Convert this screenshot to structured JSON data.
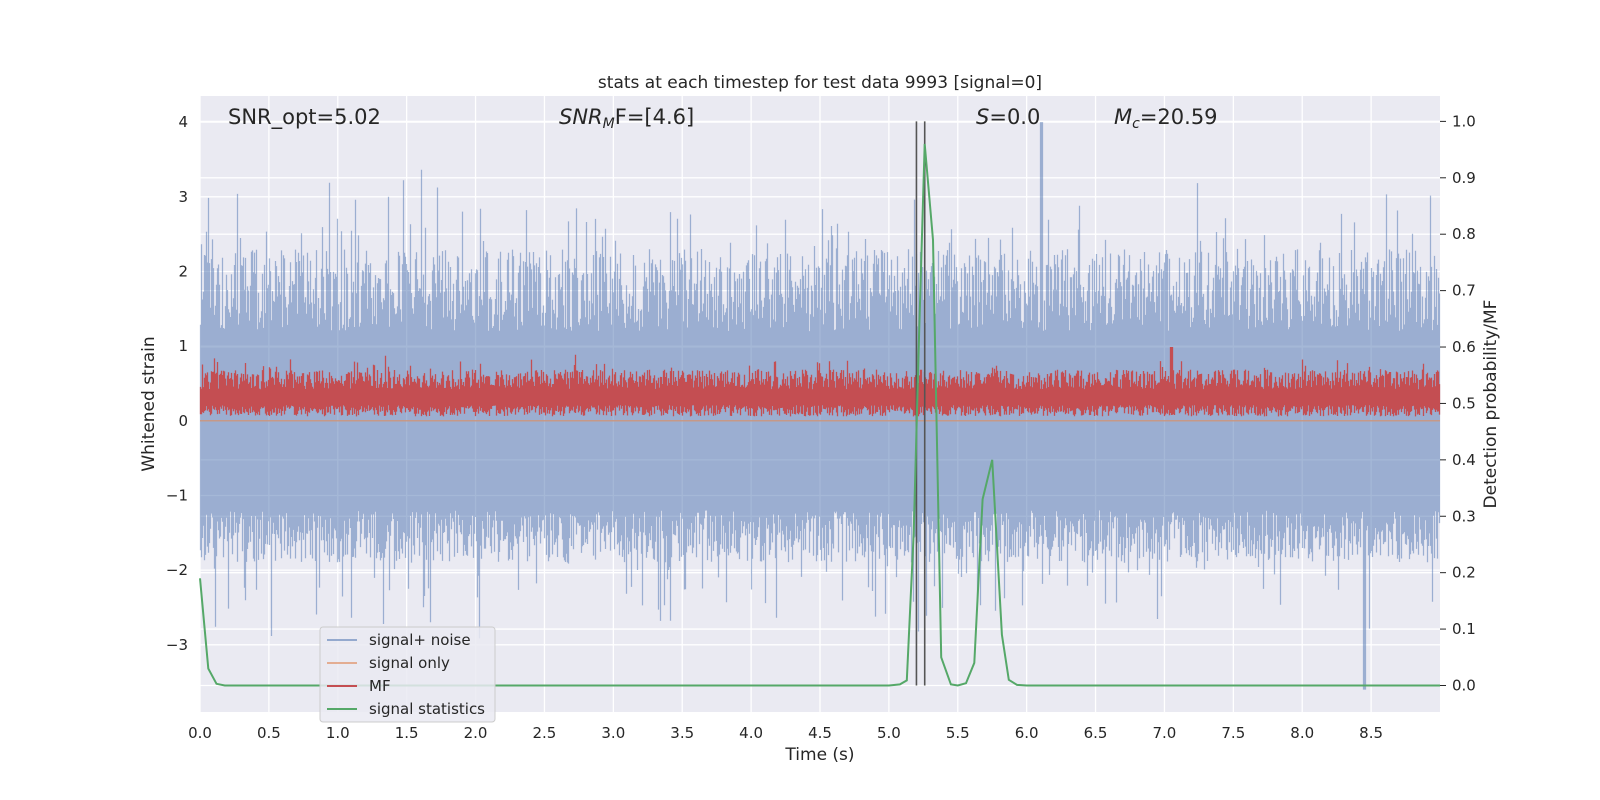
{
  "chart_data": {
    "type": "line",
    "title": "stats at each timestep for test data 9993 [signal=0]",
    "xlabel": "Time (s)",
    "ylabel": "Whitened strain",
    "ylabel_right": "Detection probability/MF",
    "xlim": [
      0.0,
      9.0
    ],
    "ylim": [
      -3.9,
      4.35
    ],
    "ylim_right": [
      -0.047,
      1.045
    ],
    "xticks": [
      0.0,
      0.5,
      1.0,
      1.5,
      2.0,
      2.5,
      3.0,
      3.5,
      4.0,
      4.5,
      5.0,
      5.5,
      6.0,
      6.5,
      7.0,
      7.5,
      8.0,
      8.5
    ],
    "xtick_labels": [
      "0.0",
      "0.5",
      "1.0",
      "1.5",
      "2.0",
      "2.5",
      "3.0",
      "3.5",
      "4.0",
      "4.5",
      "5.0",
      "5.5",
      "6.0",
      "6.5",
      "7.0",
      "7.5",
      "8.0",
      "8.5"
    ],
    "yticks": [
      -3,
      -2,
      -1,
      0,
      1,
      2,
      3,
      4
    ],
    "ytick_labels": [
      "−3",
      "−2",
      "−1",
      "0",
      "1",
      "2",
      "3",
      "4"
    ],
    "yticks_right": [
      0.0,
      0.1,
      0.2,
      0.3,
      0.4,
      0.5,
      0.6,
      0.7,
      0.8,
      0.9,
      1.0
    ],
    "ytick_right_labels": [
      "0.0",
      "0.1",
      "0.2",
      "0.3",
      "0.4",
      "0.5",
      "0.6",
      "0.7",
      "0.8",
      "0.9",
      "1.0"
    ],
    "annotations": {
      "snr_opt": "SNR_opt=5.02",
      "snr_mf": "SNR",
      "snr_mf_sub": "M",
      "snr_mf_rest": "F=[4.6]",
      "s_label": "S",
      "s_rest": "=0.0",
      "mc_label": "M",
      "mc_sub": "c",
      "mc_rest": "=20.59"
    },
    "vertical_markers_x": [
      5.2,
      5.26
    ],
    "series": [
      {
        "name": "signal+ noise",
        "color": "#4c72b0",
        "alpha": 0.5,
        "note": "noise band roughly between -2.5 and 3.2, spikes to about 4.0 near t=6.1"
      },
      {
        "name": "signal only",
        "color": "#dd8452",
        "alpha": 0.5,
        "values_const": 0.0
      },
      {
        "name": "MF",
        "color": "#c44e52",
        "axis": "right",
        "note": "fluctuates about 0.5 to 0.55, peaks near 0.6"
      },
      {
        "name": "signal statistics",
        "color": "#55a868",
        "axis": "right",
        "x": [
          0.0,
          0.06,
          0.12,
          0.18,
          0.3,
          0.6,
          1.0,
          2.0,
          3.0,
          4.0,
          4.5,
          5.0,
          5.08,
          5.13,
          5.18,
          5.22,
          5.26,
          5.32,
          5.38,
          5.45,
          5.5,
          5.56,
          5.62,
          5.68,
          5.75,
          5.82,
          5.87,
          5.93,
          6.0,
          7.0,
          8.0,
          9.0
        ],
        "y": [
          0.19,
          0.03,
          0.003,
          0.0,
          0.0,
          0.0,
          0.0,
          0.0,
          0.0,
          0.0,
          0.0,
          0.0,
          0.002,
          0.009,
          0.27,
          0.63,
          0.96,
          0.79,
          0.05,
          0.002,
          0.0,
          0.004,
          0.04,
          0.33,
          0.4,
          0.09,
          0.01,
          0.001,
          0.0,
          0.0,
          0.0,
          0.0
        ]
      }
    ],
    "legend_position": "lower-left",
    "grid": true
  }
}
